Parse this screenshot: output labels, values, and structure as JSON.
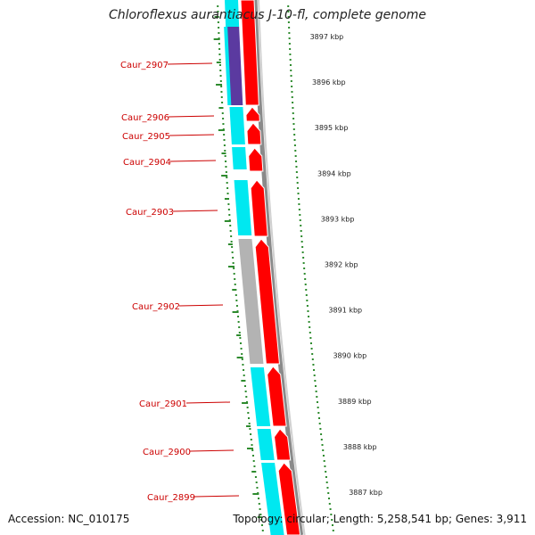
{
  "title": "Chloroflexus aurantiacus J-10-fl, complete genome",
  "footer": {
    "accession": "Accession: NC_010175",
    "summary": "Topology: circular; Length: 5,258,541 bp; Genes: 3,911"
  },
  "colors": {
    "label_red": "#cc0000",
    "cyan_block": "#00e8f0",
    "grey_block": "#b3b3b3",
    "purple_block": "#5b3aa0",
    "red_arrow": "#ff0000",
    "tick_green": "#2e8b2e"
  },
  "genes": [
    {
      "label": "Caur_2907"
    },
    {
      "label": "Caur_2906"
    },
    {
      "label": "Caur_2905"
    },
    {
      "label": "Caur_2904"
    },
    {
      "label": "Caur_2903"
    },
    {
      "label": "Caur_2902"
    },
    {
      "label": "Caur_2901"
    },
    {
      "label": "Caur_2900"
    },
    {
      "label": "Caur_2899"
    }
  ],
  "scale_ticks": [
    {
      "label": "3897 kbp"
    },
    {
      "label": "3896 kbp"
    },
    {
      "label": "3895 kbp"
    },
    {
      "label": "3894 kbp"
    },
    {
      "label": "3893 kbp"
    },
    {
      "label": "3892 kbp"
    },
    {
      "label": "3891 kbp"
    },
    {
      "label": "3890 kbp"
    },
    {
      "label": "3889 kbp"
    },
    {
      "label": "3888 kbp"
    },
    {
      "label": "3887 kbp"
    }
  ]
}
